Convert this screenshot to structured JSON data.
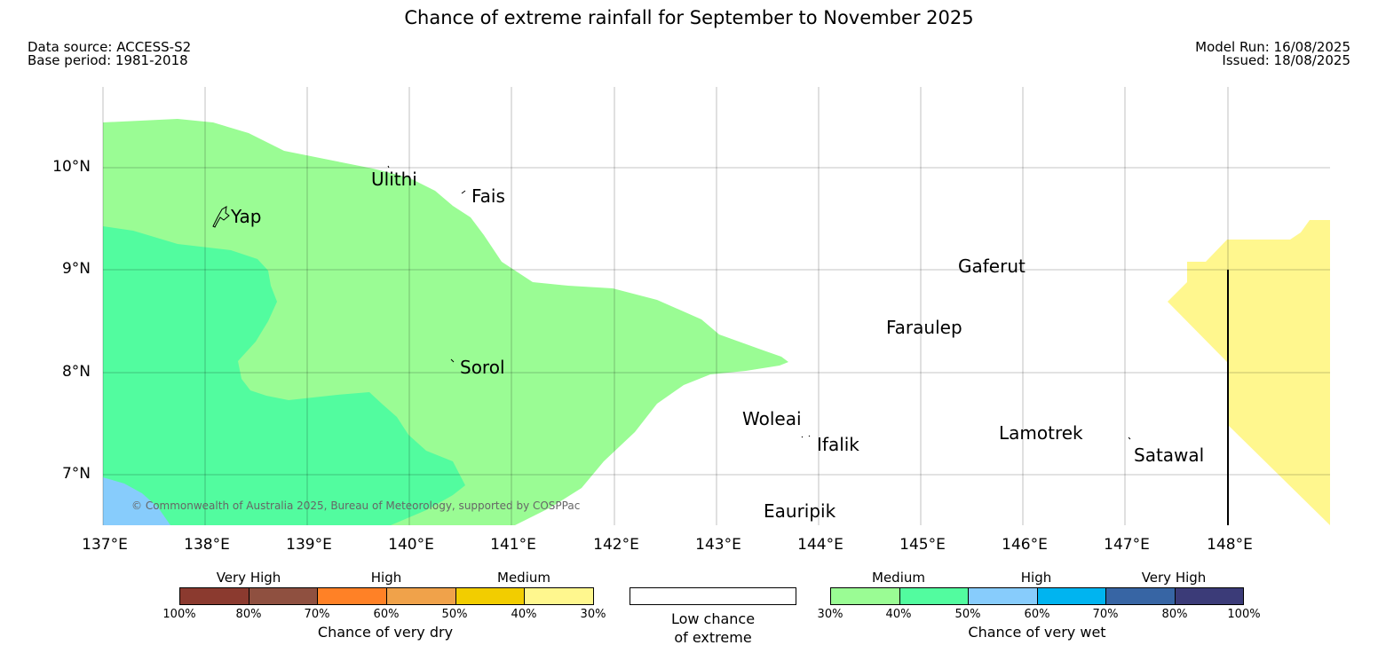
{
  "title": "Chance of extreme rainfall for September to November 2025",
  "data_source": "Data source: ACCESS-S2",
  "base_period": "Base period: 1981-2018",
  "model_run": "Model Run: 16/08/2025",
  "issued": "Issued: 18/08/2025",
  "lat_ticks": [
    "10°N",
    "9°N",
    "8°N",
    "7°N"
  ],
  "lon_ticks": [
    "137°E",
    "138°E",
    "139°E",
    "140°E",
    "141°E",
    "142°E",
    "143°E",
    "144°E",
    "145°E",
    "146°E",
    "147°E",
    "148°E"
  ],
  "places": {
    "yap": "Yap",
    "ulithi": "Ulithi",
    "fais": "Fais",
    "sorol": "Sorol",
    "gaferut": "Gaferut",
    "faraulep": "Faraulep",
    "woleai": "Woleai",
    "ifalik": "Ifalik",
    "lamotrek": "Lamotrek",
    "satawal": "Satawal",
    "eauripik": "Eauripik"
  },
  "copyright": "© Commonwealth of Australia 2025, Bureau of Meteorology, supported by COSPPac",
  "legend": {
    "dry": {
      "categories": [
        "Very High",
        "High",
        "Medium"
      ],
      "colors": [
        "#8b3a2f",
        "#8f5040",
        "#ff8126",
        "#f0a24a",
        "#f2cd00",
        "#fff78e"
      ],
      "ticks": [
        "100%",
        "80%",
        "70%",
        "60%",
        "50%",
        "40%",
        "30%"
      ],
      "title": "Chance of very dry"
    },
    "low": {
      "title_line1": "Low chance",
      "title_line2": "of extreme"
    },
    "wet": {
      "categories": [
        "Medium",
        "High",
        "Very High"
      ],
      "colors": [
        "#9afc94",
        "#52fc9f",
        "#87ccfc",
        "#00b4f0",
        "#3765a4",
        "#3b3b78"
      ],
      "ticks": [
        "30%",
        "40%",
        "50%",
        "60%",
        "70%",
        "80%",
        "100%"
      ],
      "title": "Chance of very wet"
    }
  },
  "colors": {
    "wet_medium_30_40": "#9afc94",
    "wet_medium_40_50": "#52fc9f",
    "wet_high_50_60": "#87ccfc",
    "dry_medium_30_40": "#fff78e"
  }
}
